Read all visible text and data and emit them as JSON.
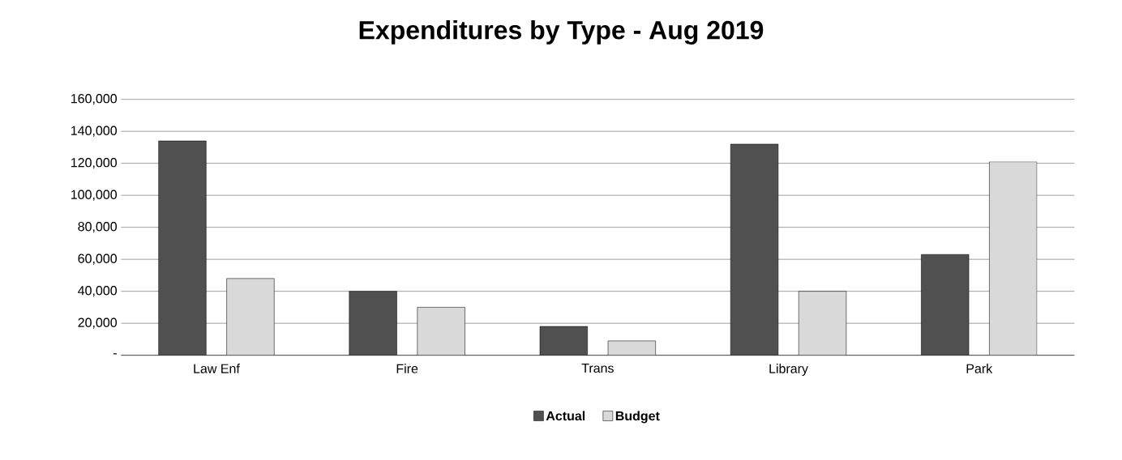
{
  "chart_data": {
    "type": "bar",
    "title": "Expenditures by Type - Aug 2019",
    "categories": [
      "Law Enf",
      "Fire",
      "Trans",
      "Library",
      "Park"
    ],
    "series": [
      {
        "name": "Actual",
        "color": "#505050",
        "values": [
          134000,
          40000,
          18000,
          132000,
          63000
        ]
      },
      {
        "name": "Budget",
        "color": "#d9d9d9",
        "values": [
          48000,
          30000,
          9000,
          40000,
          121000
        ]
      }
    ],
    "ylim": [
      0,
      160000
    ],
    "yticks": [
      {
        "value": 0,
        "label": "-"
      },
      {
        "value": 20000,
        "label": "20,000"
      },
      {
        "value": 40000,
        "label": "40,000"
      },
      {
        "value": 60000,
        "label": "60,000"
      },
      {
        "value": 80000,
        "label": "80,000"
      },
      {
        "value": 100000,
        "label": "100,000"
      },
      {
        "value": 120000,
        "label": "120,000"
      },
      {
        "value": 140000,
        "label": "140,000"
      },
      {
        "value": 160000,
        "label": "160,000"
      }
    ],
    "grid": "y",
    "legend": "bottom"
  }
}
